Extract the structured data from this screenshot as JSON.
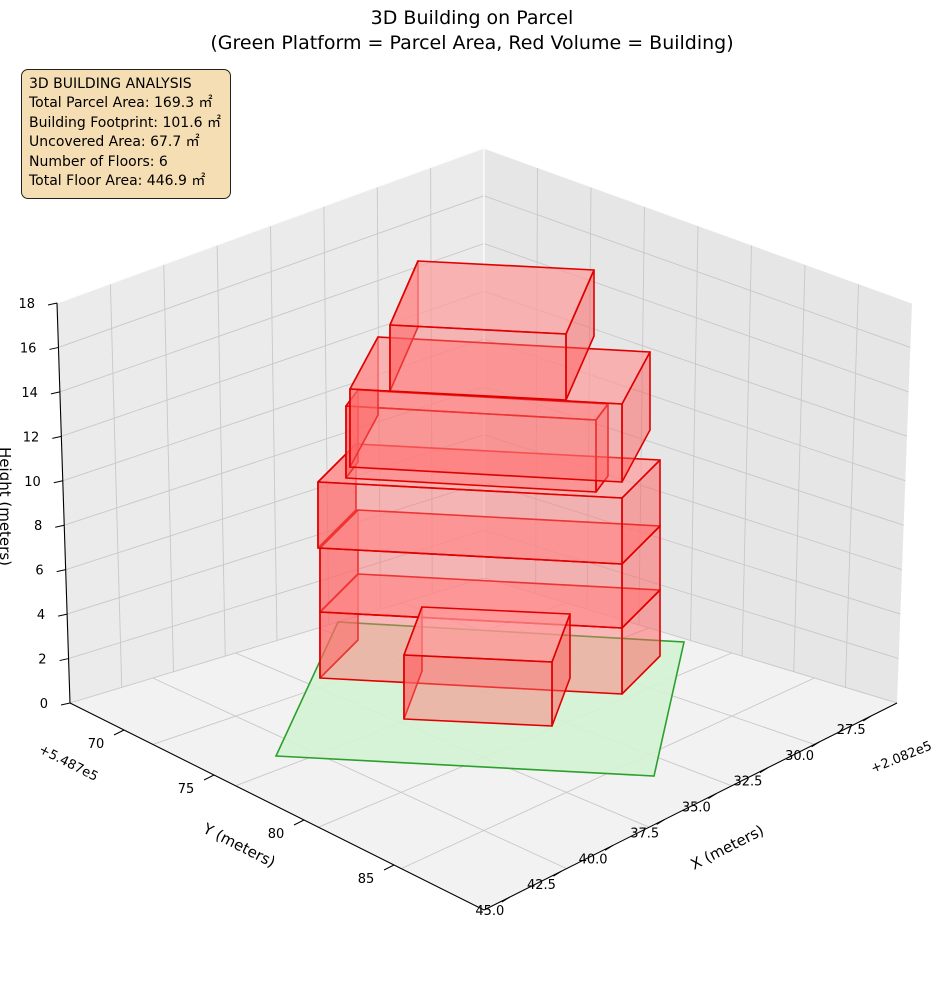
{
  "chart_data": {
    "type": "3d-bar",
    "title": "3D Building on Parcel",
    "subtitle": "(Green Platform = Parcel Area, Red Volume = Building)",
    "xlabel": "X (meters)",
    "ylabel": "Y (meters)",
    "zlabel": "Height (meters)",
    "x_offset_label": "+2.082e5",
    "y_offset_label": "+5.487e5",
    "x_ticks": [
      "27.5",
      "30.0",
      "32.5",
      "35.0",
      "37.5",
      "40.0",
      "42.5",
      "45.0"
    ],
    "y_ticks": [
      "70",
      "75",
      "80",
      "85"
    ],
    "z_ticks": [
      "0",
      "2",
      "4",
      "6",
      "8",
      "10",
      "12",
      "14",
      "16",
      "18"
    ],
    "zlim": [
      0,
      18
    ],
    "grid": true,
    "colors": {
      "parcel": "#2ca02c",
      "parcel_fill": "#d4f3d4",
      "building": "#ff0000",
      "building_fill": "#ff5a5a"
    },
    "parcel": {
      "name": "Parcel Area",
      "z": 0
    },
    "floors": [
      {
        "floor": 1,
        "z_bottom": 0,
        "z_top": 3
      },
      {
        "floor": 2,
        "z_bottom": 3,
        "z_top": 6
      },
      {
        "floor": 3,
        "z_bottom": 6,
        "z_top": 9
      },
      {
        "floor": 4,
        "z_bottom": 9,
        "z_top": 12
      },
      {
        "floor": 5,
        "z_bottom": 12,
        "z_top": 15
      },
      {
        "floor": 6,
        "z_bottom": 15,
        "z_top": 18
      }
    ]
  },
  "info_box": {
    "lines": [
      "3D BUILDING ANALYSIS",
      "Total Parcel Area: 169.3 ㎡",
      "Building Footprint: 101.6 ㎡",
      "Uncovered Area: 67.7 ㎡",
      "Number of Floors: 6",
      "Total Floor Area: 446.9 ㎡"
    ]
  }
}
